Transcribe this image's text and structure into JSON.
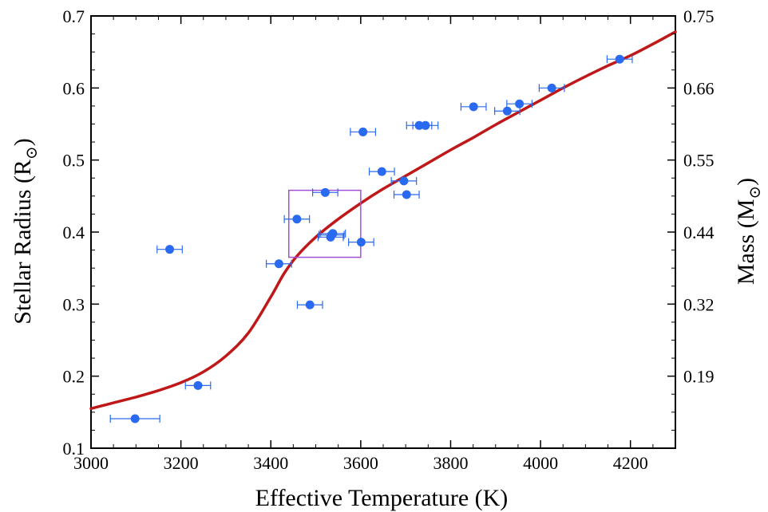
{
  "chart_data": {
    "type": "scatter",
    "xlabel": "Effective Temperature (K)",
    "ylabel": "Stellar Radius (R",
    "ylabel_symbol": "⊙",
    "ylabel_close": ")",
    "y2label": "Mass (M",
    "y2label_symbol": "⊙",
    "y2label_close": ")",
    "xlim": [
      3000,
      4300
    ],
    "ylim": [
      0.1,
      0.7
    ],
    "xticks": [
      3000,
      3200,
      3400,
      3600,
      3800,
      4000,
      4200
    ],
    "xtick_labels": [
      "3000",
      "3200",
      "3400",
      "3600",
      "3800",
      "4000",
      "4200"
    ],
    "yticks": [
      0.1,
      0.2,
      0.3,
      0.4,
      0.5,
      0.6,
      0.7
    ],
    "ytick_labels": [
      "0.1",
      "0.2",
      "0.3",
      "0.4",
      "0.5",
      "0.6",
      "0.7"
    ],
    "y2ticks_at_radius": [
      0.2,
      0.3,
      0.4,
      0.5,
      0.6,
      0.7
    ],
    "y2tick_labels": [
      "0.19",
      "0.32",
      "0.44",
      "0.55",
      "0.66",
      "0.75"
    ],
    "grid": false,
    "colors": {
      "points": "#2a6af0",
      "errorbars": "#2a6af0",
      "curve": "#c01818",
      "box": "#a050d8",
      "axes": "#000000"
    },
    "points": [
      {
        "x": 3098,
        "y": 0.141,
        "xerr": 55
      },
      {
        "x": 3175,
        "y": 0.376,
        "xerr": 28
      },
      {
        "x": 3238,
        "y": 0.187,
        "xerr": 28
      },
      {
        "x": 3418,
        "y": 0.356,
        "xerr": 28
      },
      {
        "x": 3458,
        "y": 0.418,
        "xerr": 28
      },
      {
        "x": 3487,
        "y": 0.299,
        "xerr": 28
      },
      {
        "x": 3521,
        "y": 0.455,
        "xerr": 28
      },
      {
        "x": 3533,
        "y": 0.393,
        "xerr": 28
      },
      {
        "x": 3535,
        "y": 0.396,
        "xerr": 28
      },
      {
        "x": 3538,
        "y": 0.398,
        "xerr": 28
      },
      {
        "x": 3601,
        "y": 0.386,
        "xerr": 28
      },
      {
        "x": 3605,
        "y": 0.539,
        "xerr": 28
      },
      {
        "x": 3647,
        "y": 0.484,
        "xerr": 28
      },
      {
        "x": 3696,
        "y": 0.471,
        "xerr": 28
      },
      {
        "x": 3702,
        "y": 0.452,
        "xerr": 28
      },
      {
        "x": 3730,
        "y": 0.548,
        "xerr": 28
      },
      {
        "x": 3744,
        "y": 0.548,
        "xerr": 28
      },
      {
        "x": 3851,
        "y": 0.574,
        "xerr": 28
      },
      {
        "x": 3926,
        "y": 0.568,
        "xerr": 28
      },
      {
        "x": 3953,
        "y": 0.578,
        "xerr": 28
      },
      {
        "x": 4025,
        "y": 0.6,
        "xerr": 28
      },
      {
        "x": 4176,
        "y": 0.64,
        "xerr": 28
      }
    ],
    "fit_curve": [
      [
        3000,
        0.155
      ],
      [
        3050,
        0.163
      ],
      [
        3100,
        0.171
      ],
      [
        3150,
        0.18
      ],
      [
        3200,
        0.191
      ],
      [
        3250,
        0.206
      ],
      [
        3300,
        0.228
      ],
      [
        3350,
        0.26
      ],
      [
        3400,
        0.31
      ],
      [
        3430,
        0.343
      ],
      [
        3460,
        0.368
      ],
      [
        3500,
        0.393
      ],
      [
        3550,
        0.418
      ],
      [
        3600,
        0.44
      ],
      [
        3650,
        0.46
      ],
      [
        3700,
        0.478
      ],
      [
        3750,
        0.496
      ],
      [
        3800,
        0.514
      ],
      [
        3850,
        0.531
      ],
      [
        3900,
        0.549
      ],
      [
        3950,
        0.566
      ],
      [
        4000,
        0.583
      ],
      [
        4050,
        0.6
      ],
      [
        4100,
        0.616
      ],
      [
        4150,
        0.631
      ],
      [
        4200,
        0.645
      ],
      [
        4250,
        0.661
      ],
      [
        4300,
        0.678
      ]
    ],
    "highlight_box": {
      "x": [
        3440,
        3600
      ],
      "y": [
        0.365,
        0.458
      ]
    }
  }
}
